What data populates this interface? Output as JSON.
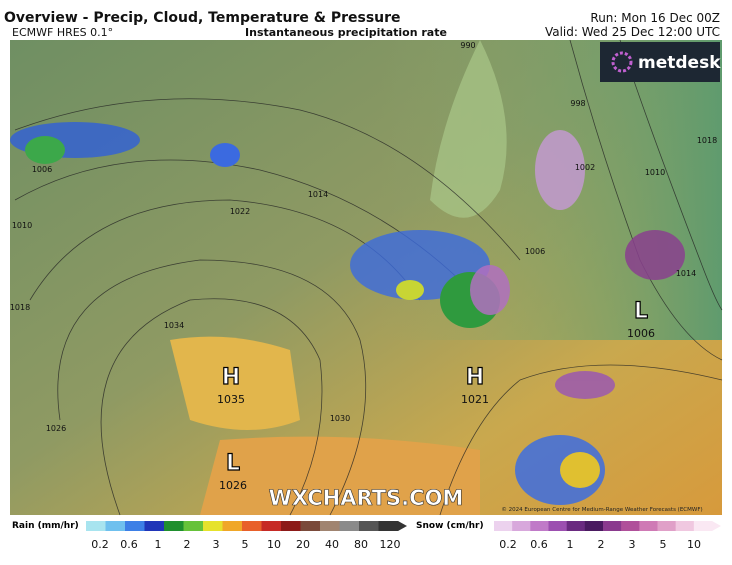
{
  "header": {
    "title": "Overview - Precip, Cloud, Temperature & Pressure",
    "model": "ECMWF HRES 0.1°",
    "field": "Instantaneous precipitation rate",
    "run": "Run: Mon 16 Dec 00Z",
    "valid": "Valid: Wed 25 Dec 12:00 UTC"
  },
  "logo": "metdesk",
  "watermark": "WXCHARTS.COM",
  "copyright": "© 2024 European Centre for Medium-Range Weather Forecasts (ECMWF)",
  "centers": [
    {
      "kind": "H",
      "value": 1035
    },
    {
      "kind": "H",
      "value": 1021
    },
    {
      "kind": "L",
      "value": 1026
    },
    {
      "kind": "L",
      "value": 1006
    }
  ],
  "isobar_labels": [
    990,
    998,
    1002,
    1006,
    1010,
    1014,
    1018,
    1022,
    1026,
    1030,
    1034,
    1010,
    1014,
    1018,
    1006
  ],
  "legend": {
    "rain": {
      "title": "Rain (mm/hr)",
      "ticks": [
        0.2,
        0.6,
        1,
        2,
        3,
        5,
        10,
        20,
        40,
        80,
        120
      ]
    },
    "snow": {
      "title": "Snow (cm/hr)",
      "ticks": [
        0.2,
        0.6,
        1,
        2,
        3,
        5,
        10
      ]
    }
  }
}
